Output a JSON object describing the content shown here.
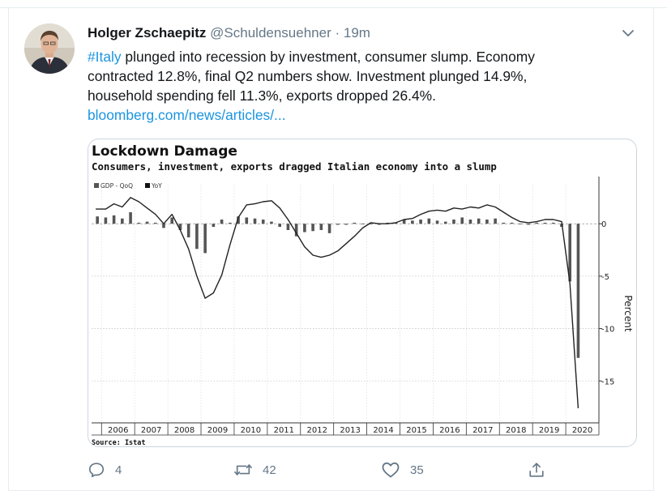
{
  "tweet": {
    "author_name": "Holger Zschaepitz",
    "handle": "@Schuldensuehner",
    "separator": "·",
    "time": "19m",
    "hashtag": "#Italy",
    "line1_rest": " plunged into recession by investment, consumer slump. Economy",
    "line2": "contracted 12.8%, final Q2 numbers show. Investment plunged 14.9%,",
    "line3": "household spending fell 11.3%, exports dropped 26.4%.",
    "link": "bloomberg.com/news/articles/..."
  },
  "actions": {
    "reply_count": "4",
    "retweet_count": "42",
    "like_count": "35"
  },
  "icons": {
    "avatar": "avatar-photo",
    "menu": "chevron-down-icon",
    "reply": "reply-icon",
    "retweet": "retweet-icon",
    "like": "heart-icon",
    "share": "share-icon"
  },
  "colors": {
    "link": "#1b95e0",
    "text": "#14171a",
    "muted": "#657786",
    "line_series": "#222222",
    "bar_series": "#555555"
  },
  "chart_data": {
    "type": "bar+line",
    "title": "Lockdown Damage",
    "subtitle": "Consumers, investment, exports dragged Italian economy into a slump",
    "ylabel": "Percent",
    "source": "Source: Istat",
    "ylim": [
      -19,
      4.5
    ],
    "yticks": [
      0,
      -5,
      -10,
      -15
    ],
    "ytick_labels": [
      "0",
      "-5",
      "-10",
      "-15"
    ],
    "grid": true,
    "legend_position": "top-left",
    "years": [
      "2006",
      "2007",
      "2008",
      "2009",
      "2010",
      "2011",
      "2012",
      "2013",
      "2014",
      "2015",
      "2016",
      "2017",
      "2018",
      "2019",
      "2020"
    ],
    "x_start_year": 2005.7,
    "x_end_year": 2021.0,
    "series": [
      {
        "name": "GDP - QoQ",
        "kind": "bar",
        "x": [
          2005.75,
          2006.0,
          2006.25,
          2006.5,
          2006.75,
          2007.0,
          2007.25,
          2007.5,
          2007.75,
          2008.0,
          2008.25,
          2008.5,
          2008.75,
          2009.0,
          2009.25,
          2009.5,
          2009.75,
          2010.0,
          2010.25,
          2010.5,
          2010.75,
          2011.0,
          2011.25,
          2011.5,
          2011.75,
          2012.0,
          2012.25,
          2012.5,
          2012.75,
          2013.0,
          2013.25,
          2013.5,
          2013.75,
          2014.0,
          2014.25,
          2014.5,
          2014.75,
          2015.0,
          2015.25,
          2015.5,
          2015.75,
          2016.0,
          2016.25,
          2016.5,
          2016.75,
          2017.0,
          2017.25,
          2017.5,
          2017.75,
          2018.0,
          2018.25,
          2018.5,
          2018.75,
          2019.0,
          2019.25,
          2019.5,
          2019.75,
          2020.0,
          2020.25
        ],
        "values": [
          0.7,
          0.6,
          0.8,
          0.5,
          1.1,
          0.1,
          0.2,
          0.1,
          -0.4,
          0.6,
          -0.6,
          -1.3,
          -2.4,
          -2.8,
          -0.3,
          0.4,
          0.1,
          0.7,
          0.6,
          0.5,
          0.4,
          0.2,
          -0.3,
          -0.6,
          -1.2,
          -0.8,
          -0.7,
          -0.6,
          -0.9,
          -0.1,
          -0.1,
          0.1,
          0.0,
          0.0,
          -0.1,
          0.1,
          0.1,
          0.4,
          0.3,
          0.4,
          0.5,
          0.3,
          0.2,
          0.4,
          0.6,
          0.4,
          0.5,
          0.4,
          0.5,
          0.1,
          0.1,
          0.0,
          -0.1,
          0.1,
          0.1,
          0.1,
          -0.3,
          -5.5,
          -12.8
        ]
      },
      {
        "name": "YoY",
        "kind": "line",
        "x": [
          2005.7,
          2006.0,
          2006.25,
          2006.5,
          2006.75,
          2007.0,
          2007.25,
          2007.5,
          2007.75,
          2008.0,
          2008.25,
          2008.5,
          2008.75,
          2009.0,
          2009.25,
          2009.5,
          2009.75,
          2010.0,
          2010.25,
          2010.5,
          2010.75,
          2011.0,
          2011.25,
          2011.5,
          2011.75,
          2012.0,
          2012.25,
          2012.5,
          2012.75,
          2013.0,
          2013.25,
          2013.5,
          2013.75,
          2014.0,
          2014.25,
          2014.5,
          2014.75,
          2015.0,
          2015.25,
          2015.5,
          2015.75,
          2016.0,
          2016.25,
          2016.5,
          2016.75,
          2017.0,
          2017.25,
          2017.5,
          2017.75,
          2018.0,
          2018.25,
          2018.5,
          2018.75,
          2019.0,
          2019.25,
          2019.5,
          2019.75,
          2020.0,
          2020.25
        ],
        "values": [
          1.4,
          1.4,
          1.9,
          1.6,
          2.5,
          2.1,
          1.5,
          0.9,
          0.0,
          0.9,
          -0.6,
          -2.4,
          -5.0,
          -7.1,
          -6.6,
          -4.9,
          -2.0,
          0.6,
          1.8,
          1.9,
          2.1,
          2.2,
          1.5,
          0.4,
          -0.9,
          -2.2,
          -3.0,
          -3.2,
          -3.0,
          -2.6,
          -1.9,
          -1.2,
          -0.4,
          0.1,
          0.0,
          0.0,
          0.1,
          0.4,
          0.5,
          0.9,
          1.2,
          1.3,
          1.2,
          1.5,
          1.4,
          1.6,
          1.5,
          1.8,
          1.6,
          1.1,
          0.6,
          0.2,
          0.1,
          0.2,
          0.4,
          0.4,
          0.2,
          -5.7,
          -17.6
        ]
      }
    ]
  }
}
